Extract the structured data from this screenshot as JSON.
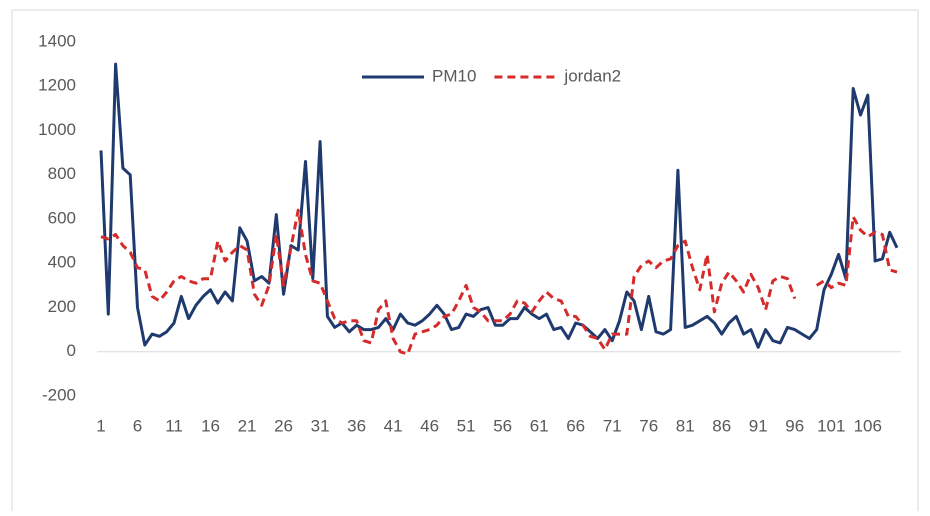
{
  "chart_data": {
    "type": "line",
    "categories": [
      "1",
      null,
      null,
      null,
      null,
      "6",
      null,
      null,
      null,
      null,
      "11",
      null,
      null,
      null,
      null,
      "16",
      null,
      null,
      null,
      null,
      "21",
      null,
      null,
      null,
      null,
      "26",
      null,
      null,
      null,
      null,
      "31",
      null,
      null,
      null,
      null,
      "36",
      null,
      null,
      null,
      null,
      "41",
      null,
      null,
      null,
      null,
      "46",
      null,
      null,
      null,
      null,
      "51",
      null,
      null,
      null,
      null,
      "56",
      null,
      null,
      null,
      null,
      "61",
      null,
      null,
      null,
      null,
      "66",
      null,
      null,
      null,
      null,
      "71",
      null,
      null,
      null,
      null,
      "76",
      null,
      null,
      null,
      null,
      "81",
      null,
      null,
      null,
      null,
      "86",
      null,
      null,
      null,
      null,
      "91",
      null,
      null,
      null,
      null,
      "96",
      null,
      null,
      null,
      null,
      "101",
      null,
      null,
      null,
      null,
      "106",
      null,
      null,
      null,
      null
    ],
    "series": [
      {
        "name": "PM10",
        "color": "#1f3a6e",
        "dashed": false,
        "values": [
          910,
          170,
          1300,
          830,
          800,
          200,
          30,
          80,
          70,
          90,
          130,
          250,
          150,
          210,
          250,
          280,
          220,
          270,
          230,
          560,
          500,
          320,
          340,
          310,
          620,
          260,
          480,
          460,
          860,
          330,
          950,
          160,
          110,
          130,
          90,
          120,
          100,
          100,
          110,
          150,
          100,
          170,
          130,
          120,
          140,
          170,
          210,
          170,
          100,
          110,
          170,
          160,
          190,
          200,
          120,
          120,
          150,
          150,
          200,
          170,
          150,
          170,
          100,
          110,
          60,
          130,
          120,
          90,
          60,
          100,
          50,
          140,
          270,
          230,
          100,
          250,
          90,
          80,
          100,
          820,
          110,
          120,
          140,
          160,
          130,
          80,
          130,
          160,
          80,
          100,
          20,
          100,
          50,
          40,
          110,
          100,
          80,
          60,
          100,
          280,
          350,
          440,
          330,
          1190,
          1070,
          1160,
          410,
          420,
          540,
          470
        ]
      },
      {
        "name": "jordan2",
        "color": "#d62b2b",
        "dashed": true,
        "values": [
          520,
          510,
          530,
          480,
          450,
          380,
          370,
          250,
          230,
          270,
          320,
          340,
          320,
          310,
          330,
          330,
          500,
          410,
          450,
          480,
          460,
          260,
          210,
          300,
          530,
          300,
          470,
          640,
          440,
          320,
          310,
          230,
          150,
          130,
          140,
          140,
          50,
          40,
          190,
          230,
          60,
          0,
          -10,
          80,
          90,
          100,
          120,
          160,
          170,
          230,
          300,
          200,
          180,
          140,
          140,
          140,
          170,
          230,
          220,
          180,
          230,
          270,
          240,
          230,
          160,
          160,
          120,
          70,
          60,
          10,
          80,
          80,
          80,
          340,
          390,
          410,
          380,
          410,
          420,
          480,
          500,
          380,
          280,
          440,
          180,
          310,
          360,
          320,
          270,
          350,
          290,
          190,
          320,
          340,
          330,
          240,
          null,
          null,
          300,
          320,
          290,
          310,
          300,
          610,
          550,
          520,
          540,
          530,
          370,
          360
        ]
      }
    ],
    "ylim": [
      -200,
      1400
    ],
    "yticks": [
      -200,
      0,
      200,
      400,
      600,
      800,
      1000,
      1200,
      1400
    ],
    "grid": false,
    "legend": "top"
  }
}
